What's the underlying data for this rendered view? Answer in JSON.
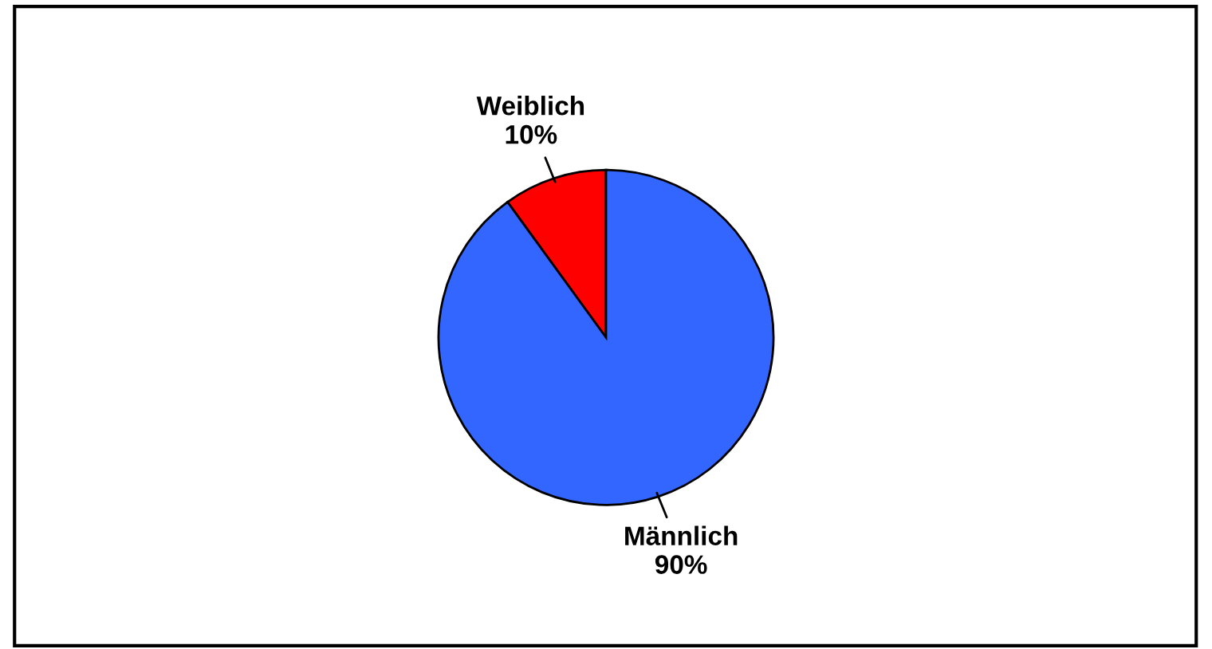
{
  "chart_data": {
    "type": "pie",
    "categories": [
      "Weiblich",
      "Männlich"
    ],
    "values": [
      10,
      90
    ],
    "colors": [
      "#ff0000",
      "#3366ff"
    ],
    "value_labels": [
      "10%",
      "90%"
    ],
    "legend": false
  }
}
